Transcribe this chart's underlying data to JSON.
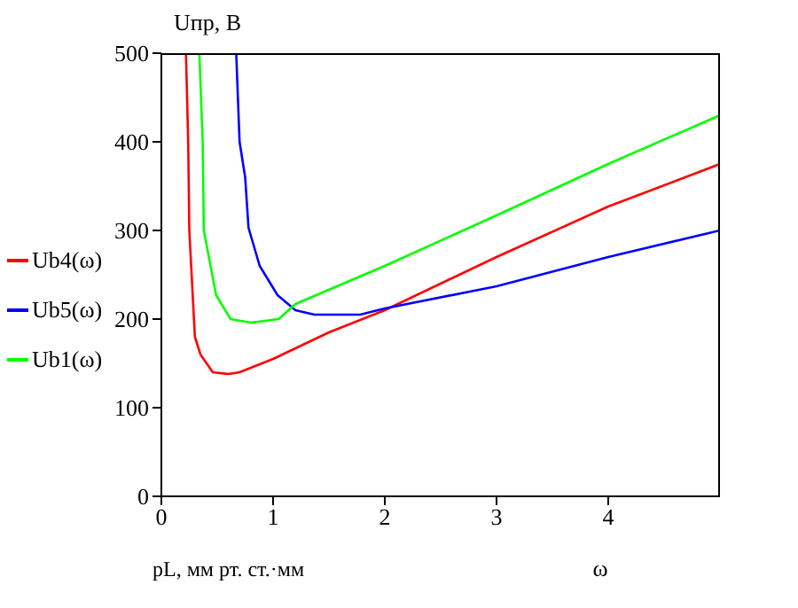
{
  "chart_data": {
    "type": "line",
    "ylabel": "Uпр, В",
    "xlabel": "ω",
    "annotations": [
      "pL, мм рт. ст.·мм"
    ],
    "xlim": [
      0,
      5
    ],
    "xticks": [
      0,
      1,
      2,
      3,
      4
    ],
    "ylim": [
      0,
      500
    ],
    "yticks": [
      0,
      100,
      200,
      300,
      400,
      500
    ],
    "grid": false,
    "legend": "left",
    "marker": "none",
    "line_style": "solid",
    "series": [
      {
        "name": "Ub4(ω)",
        "color": "#ff0000",
        "x": [
          0.22,
          0.24,
          0.25,
          0.3,
          0.35,
          0.46,
          0.6,
          0.7,
          1,
          1.5,
          2,
          3,
          4,
          5
        ],
        "values": [
          500,
          400,
          300,
          180,
          160,
          140,
          138,
          140,
          155,
          185,
          210,
          270,
          327,
          375
        ]
      },
      {
        "name": "Ub5(ω)",
        "color": "#0000ff",
        "x": [
          0.67,
          0.7,
          0.75,
          0.78,
          0.88,
          1.04,
          1.2,
          1.37,
          1.6,
          1.78,
          2,
          3,
          4,
          5
        ],
        "values": [
          500,
          400,
          360,
          303,
          260,
          227,
          210,
          205,
          205,
          205,
          212,
          237,
          270,
          300
        ]
      },
      {
        "name": "Ub1(ω)",
        "color": "#00ff00",
        "x": [
          0.34,
          0.37,
          0.38,
          0.49,
          0.62,
          0.8,
          1.05,
          1.2,
          2,
          3,
          4,
          5
        ],
        "values": [
          500,
          400,
          300,
          227,
          200,
          196,
          200,
          217,
          260,
          317,
          375,
          430
        ]
      }
    ]
  }
}
